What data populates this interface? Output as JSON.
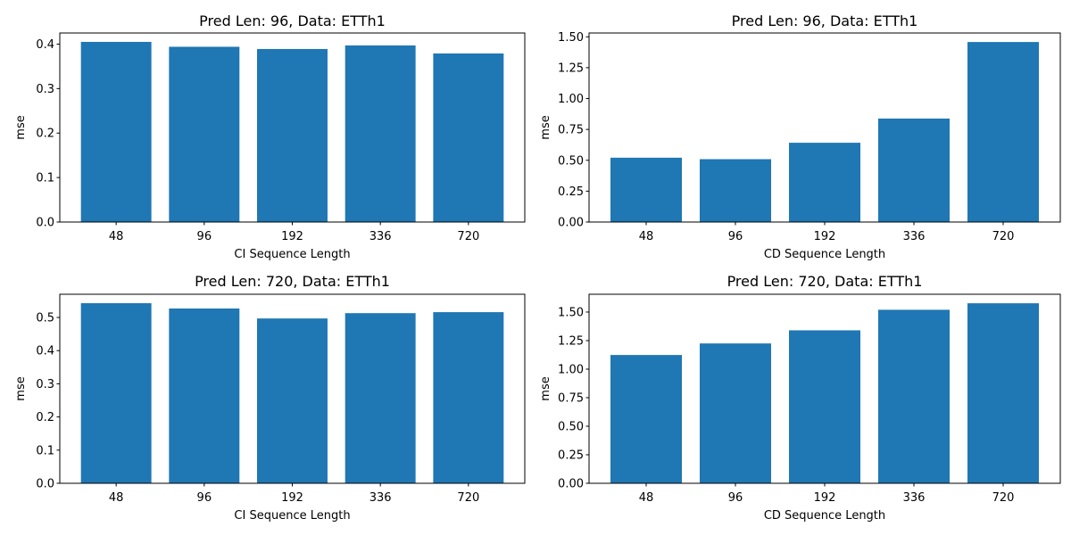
{
  "figure": {
    "bar_color": "#1f77b4"
  },
  "chart_data": [
    {
      "type": "bar",
      "title": "Pred Len: 96, Data: ETTh1",
      "xlabel": "CI Sequence Length",
      "ylabel": "mse",
      "categories": [
        "48",
        "96",
        "192",
        "336",
        "720"
      ],
      "values": [
        0.405,
        0.394,
        0.389,
        0.397,
        0.379
      ],
      "ylim": [
        0,
        0.425
      ],
      "yticks": [
        0.0,
        0.1,
        0.2,
        0.3,
        0.4
      ],
      "ytick_labels": [
        "0.0",
        "0.1",
        "0.2",
        "0.3",
        "0.4"
      ],
      "grid": false
    },
    {
      "type": "bar",
      "title": "Pred Len: 96, Data: ETTh1",
      "xlabel": "CD Sequence Length",
      "ylabel": "mse",
      "categories": [
        "48",
        "96",
        "192",
        "336",
        "720"
      ],
      "values": [
        0.521,
        0.509,
        0.642,
        0.838,
        1.458
      ],
      "ylim": [
        0,
        1.531
      ],
      "yticks": [
        0.0,
        0.25,
        0.5,
        0.75,
        1.0,
        1.25,
        1.5
      ],
      "ytick_labels": [
        "0.00",
        "0.25",
        "0.50",
        "0.75",
        "1.00",
        "1.25",
        "1.50"
      ],
      "grid": false
    },
    {
      "type": "bar",
      "title": "Pred Len: 720, Data: ETTh1",
      "xlabel": "CI Sequence Length",
      "ylabel": "mse",
      "categories": [
        "48",
        "96",
        "192",
        "336",
        "720"
      ],
      "values": [
        0.543,
        0.527,
        0.497,
        0.513,
        0.516
      ],
      "ylim": [
        0,
        0.57
      ],
      "yticks": [
        0.0,
        0.1,
        0.2,
        0.3,
        0.4,
        0.5
      ],
      "ytick_labels": [
        "0.0",
        "0.1",
        "0.2",
        "0.3",
        "0.4",
        "0.5"
      ],
      "grid": false
    },
    {
      "type": "bar",
      "title": "Pred Len: 720, Data: ETTh1",
      "xlabel": "CD Sequence Length",
      "ylabel": "mse",
      "categories": [
        "48",
        "96",
        "192",
        "336",
        "720"
      ],
      "values": [
        1.124,
        1.225,
        1.34,
        1.52,
        1.577
      ],
      "ylim": [
        0,
        1.656
      ],
      "yticks": [
        0.0,
        0.25,
        0.5,
        0.75,
        1.0,
        1.25,
        1.5
      ],
      "ytick_labels": [
        "0.00",
        "0.25",
        "0.50",
        "0.75",
        "1.00",
        "1.25",
        "1.50"
      ],
      "grid": false
    }
  ]
}
